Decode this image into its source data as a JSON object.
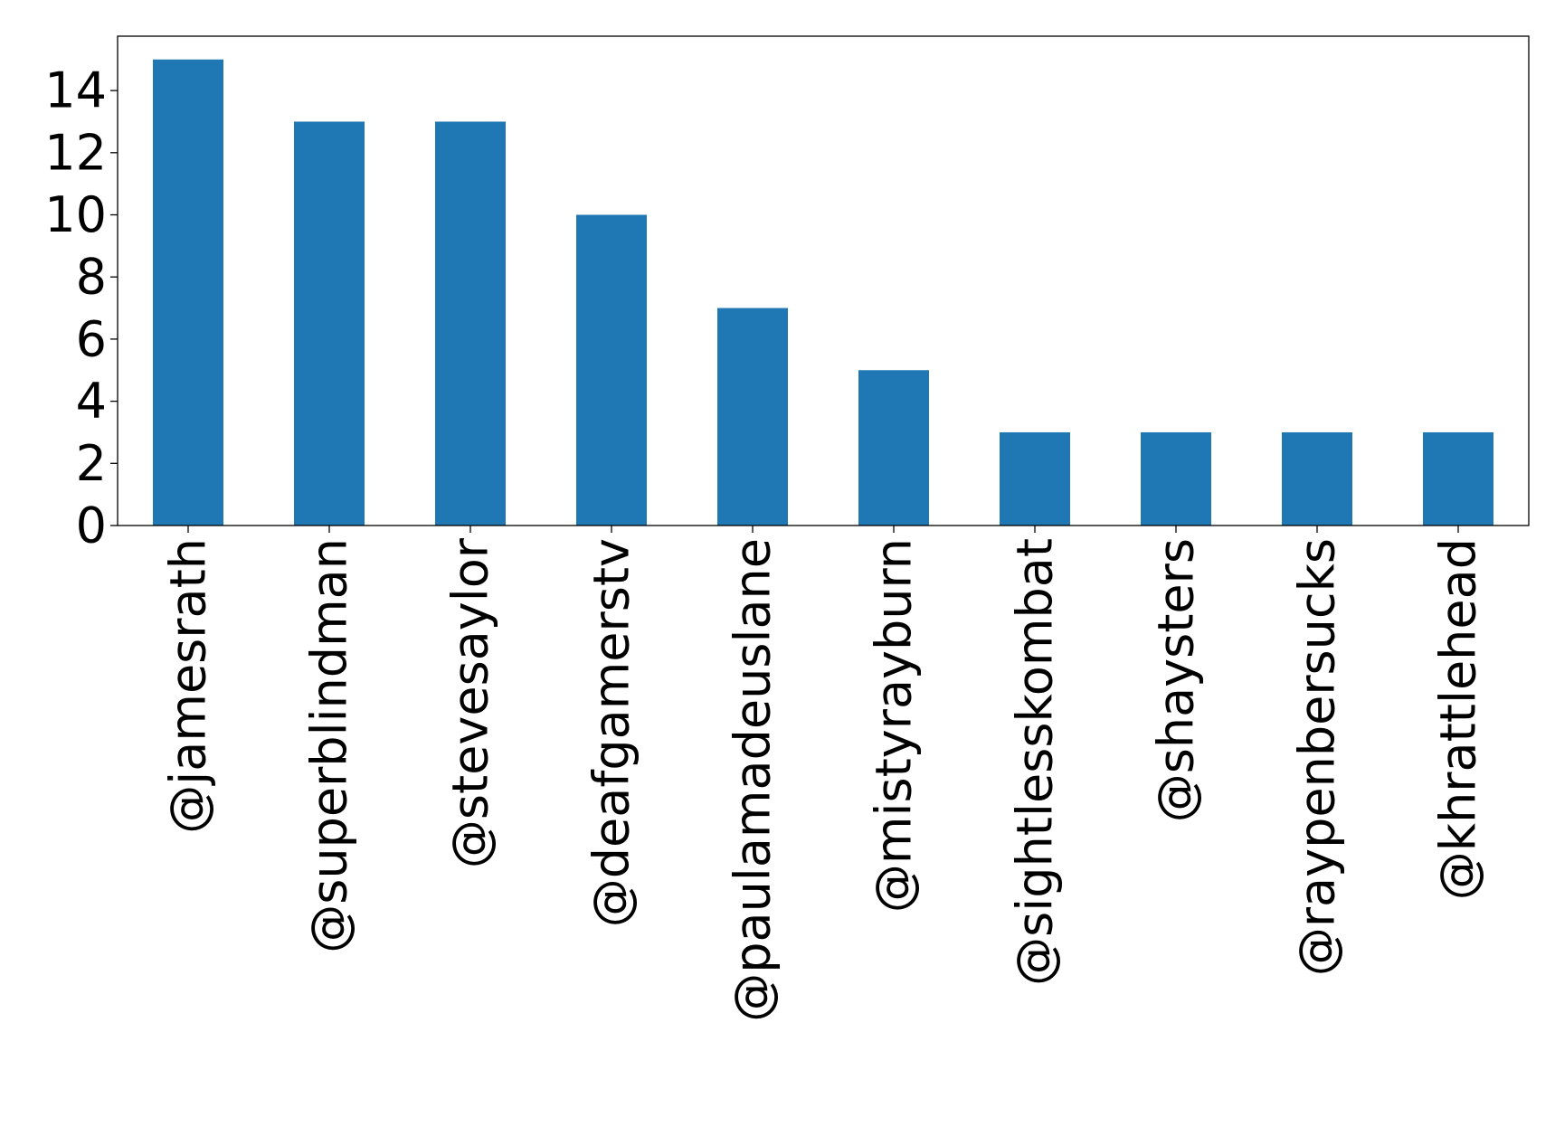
{
  "chart_data": {
    "type": "bar",
    "title": "",
    "xlabel": "",
    "ylabel": "",
    "categories": [
      "@jamesrath",
      "@superblindman",
      "@stevesaylor",
      "@deafgamerstv",
      "@paulamadeuslane",
      "@mistyrayburn",
      "@sightlesskombat",
      "@shaysters",
      "@raypenbersucks",
      "@khrattlehead"
    ],
    "values": [
      15,
      13,
      13,
      10,
      7,
      5,
      3,
      3,
      3,
      3
    ],
    "ylim": [
      0,
      15.75
    ],
    "yticks": [
      0,
      2,
      4,
      6,
      8,
      10,
      12,
      14
    ],
    "grid": false,
    "legend": "none",
    "bar_color": "#1f77b4"
  }
}
